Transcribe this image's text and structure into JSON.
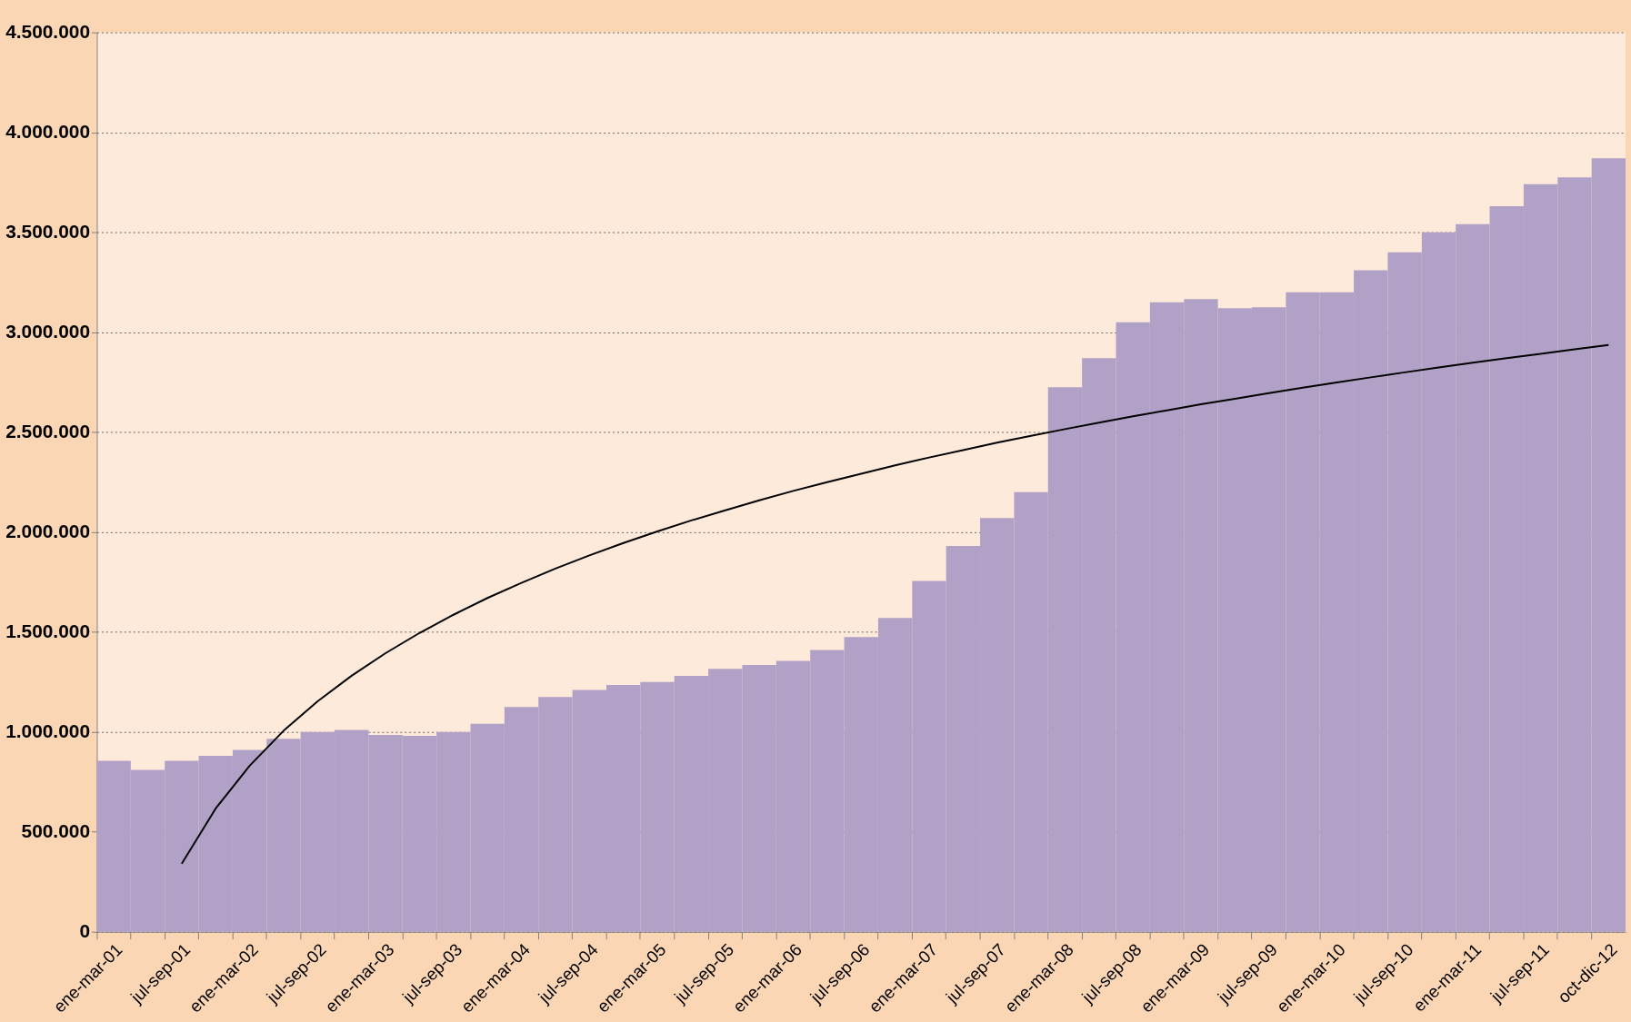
{
  "chart_data": {
    "type": "bar",
    "categories": [
      "ene-mar-01",
      null,
      "jul-sep-01",
      null,
      "ene-mar-02",
      null,
      "jul-sep-02",
      null,
      "ene-mar-03",
      null,
      "jul-sep-03",
      null,
      "ene-mar-04",
      null,
      "jul-sep-04",
      null,
      "ene-mar-05",
      null,
      "jul-sep-05",
      null,
      "ene-mar-06",
      null,
      "jul-sep-06",
      null,
      "ene-mar-07",
      null,
      "jul-sep-07",
      null,
      "ene-mar-08",
      null,
      "jul-sep-08",
      null,
      "ene-mar-09",
      null,
      "jul-sep-09",
      null,
      "ene-mar-10",
      null,
      "jul-sep-10",
      null,
      "ene-mar-11",
      null,
      "jul-sep-11",
      null,
      "oct-dic-12"
    ],
    "series": [
      {
        "color": "#b2a1c7",
        "values": [
          855000,
          810000,
          855000,
          880000,
          910000,
          965000,
          1000000,
          1010000,
          985000,
          980000,
          1000000,
          1040000,
          1125000,
          1175000,
          1210000,
          1235000,
          1250000,
          1280000,
          1315000,
          1335000,
          1355000,
          1410000,
          1475000,
          1570000,
          1755000,
          1930000,
          2070000,
          2200000,
          2725000,
          2870000,
          3050000,
          3150000,
          3165000,
          3120000,
          3125000,
          3200000,
          3200000,
          3310000,
          3400000,
          3500000,
          3540000,
          3630000,
          3740000,
          3775000,
          3870000
        ]
      },
      {
        "type": "line",
        "color": "#000000",
        "marker": "none",
        "line_style": "solid",
        "values": [
          null,
          null,
          341000,
          617000,
          831000,
          1006000,
          1153000,
          1281000,
          1394000,
          1495000,
          1586000,
          1670000,
          1746000,
          1817000,
          1883000,
          1945000,
          2003000,
          2058000,
          2109000,
          2159000,
          2206000,
          2250000,
          2292000,
          2334000,
          2373000,
          2410000,
          2447000,
          2481000,
          2515000,
          2547000,
          2579000,
          2609000,
          2639000,
          2667000,
          2695000,
          2722000,
          2748000,
          2774000,
          2799000,
          2823000,
          2847000,
          2870000,
          2892000,
          2914000,
          2936000
        ]
      }
    ],
    "ylim": [
      0,
      4500000
    ],
    "yticks": [
      0,
      {
        "value": 500000,
        "label": "500.000"
      },
      {
        "value": 1000000,
        "label": "1.000.000"
      },
      {
        "value": 1500000,
        "label": "1.500.000"
      },
      {
        "value": 2000000,
        "label": "2.000.000"
      },
      {
        "value": 2500000,
        "label": "2.500.000"
      },
      {
        "value": 3000000,
        "label": "3.000.000"
      },
      {
        "value": 3500000,
        "label": "3.500.000"
      },
      {
        "value": 4000000,
        "label": "4.000.000"
      },
      {
        "value": 4500000,
        "label": "4.500.000"
      }
    ],
    "grid": "y"
  }
}
